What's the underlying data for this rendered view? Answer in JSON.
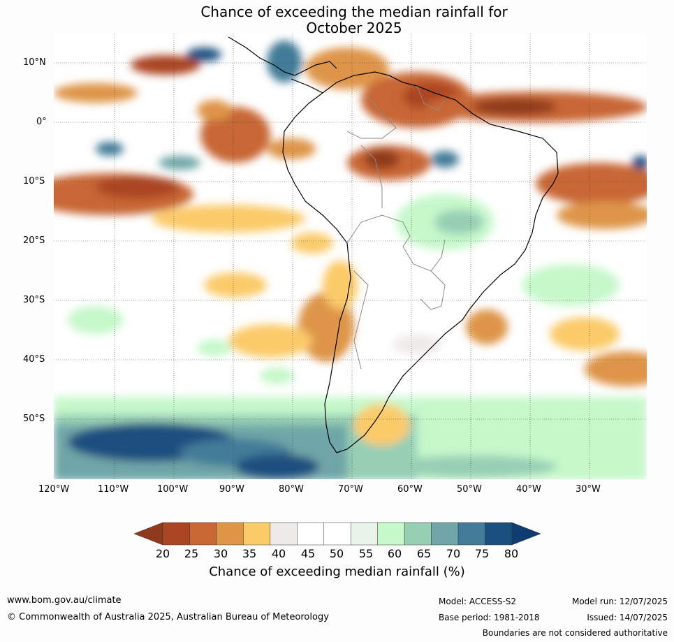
{
  "title": {
    "line1": "Chance of exceeding the median rainfall for",
    "line2": "October 2025"
  },
  "lat_ticks": [
    "10°N",
    "0°",
    "10°S",
    "20°S",
    "30°S",
    "40°S",
    "50°S"
  ],
  "lon_ticks": [
    "120°W",
    "110°W",
    "100°W",
    "90°W",
    "80°W",
    "70°W",
    "60°W",
    "50°W",
    "40°W",
    "30°W"
  ],
  "colorbar": {
    "ticks": [
      "20",
      "25",
      "30",
      "35",
      "40",
      "45",
      "50",
      "55",
      "60",
      "65",
      "70",
      "75",
      "80"
    ],
    "colors": [
      "#8f3a1f",
      "#ab4524",
      "#c86634",
      "#de9548",
      "#fbcb6a",
      "#eeeae8",
      "#ffffff",
      "#ffffff",
      "#e9f5ea",
      "#c6f8ca",
      "#97cfb5",
      "#70a6a7",
      "#437b98",
      "#1a4f80",
      "#0f3d71"
    ],
    "label": "Chance of exceeding median rainfall (%)"
  },
  "footer": {
    "url": "www.bom.gov.au/climate",
    "copyright": "© Commonwealth of Australia 2025, Australian Bureau of Meteorology",
    "model": "Model: ACCESS-S2",
    "base_period": "Base period: 1981-2018",
    "model_run": "Model run: 12/07/2025",
    "issued": "Issued: 14/07/2025",
    "disclaimer": "Boundaries are not considered authoritative"
  }
}
